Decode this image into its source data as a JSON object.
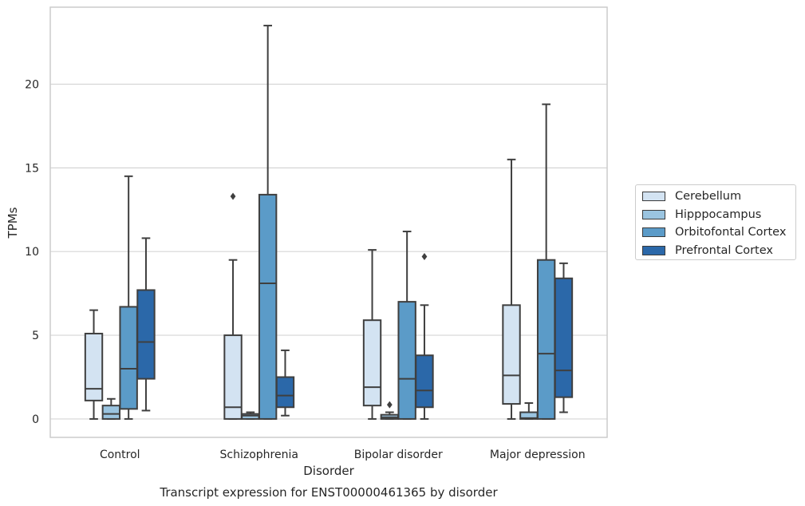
{
  "chart_data": {
    "type": "box",
    "title": "Transcript expression for ENST00000461365 by disorder",
    "xlabel": "Disorder",
    "ylabel": "TPMs",
    "ylim": [
      -1.1,
      24.6
    ],
    "yticks": [
      0,
      5,
      10,
      15,
      20
    ],
    "grid": "horizontal",
    "legend_placement": "right",
    "categories": [
      "Control",
      "Schizophrenia",
      "Bipolar disorder",
      "Major depression"
    ],
    "series": [
      {
        "name": "Cerebellum",
        "color": "#d3e3f2",
        "boxes": [
          {
            "whislo": 0,
            "q1": 1.1,
            "med": 1.8,
            "q3": 5.1,
            "whishi": 6.5,
            "fliers": []
          },
          {
            "whislo": 0,
            "q1": 0,
            "med": 0.7,
            "q3": 5.0,
            "whishi": 9.5,
            "fliers": [
              13.3
            ]
          },
          {
            "whislo": 0,
            "q1": 0.8,
            "med": 1.9,
            "q3": 5.9,
            "whishi": 10.1,
            "fliers": []
          },
          {
            "whislo": 0,
            "q1": 0.9,
            "med": 2.6,
            "q3": 6.8,
            "whishi": 15.5,
            "fliers": []
          }
        ]
      },
      {
        "name": "Hipppocampus",
        "color": "#9ac4e0",
        "boxes": [
          {
            "whislo": 0,
            "q1": 0,
            "med": 0.3,
            "q3": 0.8,
            "whishi": 1.2,
            "fliers": []
          },
          {
            "whislo": 0,
            "q1": 0,
            "med": 0.2,
            "q3": 0.3,
            "whishi": 0.4,
            "fliers": []
          },
          {
            "whislo": 0,
            "q1": 0,
            "med": 0.1,
            "q3": 0.25,
            "whishi": 0.4,
            "fliers": [
              0.85
            ]
          },
          {
            "whislo": 0,
            "q1": 0,
            "med": 0.05,
            "q3": 0.4,
            "whishi": 0.95,
            "fliers": []
          }
        ]
      },
      {
        "name": "Orbitofontal Cortex",
        "color": "#5b9bc8",
        "boxes": [
          {
            "whislo": 0,
            "q1": 0.6,
            "med": 3.0,
            "q3": 6.7,
            "whishi": 14.5,
            "fliers": []
          },
          {
            "whislo": 0,
            "q1": 0,
            "med": 8.1,
            "q3": 13.4,
            "whishi": 23.5,
            "fliers": []
          },
          {
            "whislo": 0,
            "q1": 0,
            "med": 2.4,
            "q3": 7.0,
            "whishi": 11.2,
            "fliers": []
          },
          {
            "whislo": 0,
            "q1": 0,
            "med": 3.9,
            "q3": 9.5,
            "whishi": 18.8,
            "fliers": []
          }
        ]
      },
      {
        "name": "Prefrontal Cortex",
        "color": "#2b68a9",
        "boxes": [
          {
            "whislo": 0.5,
            "q1": 2.4,
            "med": 4.6,
            "q3": 7.7,
            "whishi": 10.8,
            "fliers": []
          },
          {
            "whislo": 0.2,
            "q1": 0.7,
            "med": 1.4,
            "q3": 2.5,
            "whishi": 4.1,
            "fliers": []
          },
          {
            "whislo": 0,
            "q1": 0.7,
            "med": 1.7,
            "q3": 3.8,
            "whishi": 6.8,
            "fliers": [
              9.7
            ]
          },
          {
            "whislo": 0.4,
            "q1": 1.3,
            "med": 2.9,
            "q3": 8.4,
            "whishi": 9.3,
            "fliers": []
          }
        ]
      }
    ]
  }
}
